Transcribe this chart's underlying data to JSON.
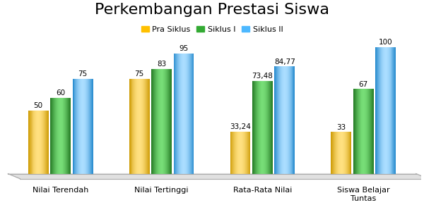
{
  "title": "Perkembangan Prestasi Siswa",
  "categories": [
    "Nilai Terendah",
    "Nilai Tertinggi",
    "Rata-Rata Nilai",
    "Siswa Belajar\nTuntas"
  ],
  "series": [
    {
      "label": "Pra Siklus",
      "values": [
        50,
        75,
        33.24,
        33
      ],
      "color": "#FFC000",
      "dark": "#CC9900",
      "light": "#FFE080"
    },
    {
      "label": "Siklus I",
      "values": [
        60,
        83,
        73.48,
        67
      ],
      "color": "#33AA33",
      "dark": "#227722",
      "light": "#77DD77"
    },
    {
      "label": "Siklus II",
      "values": [
        75,
        95,
        84.77,
        100
      ],
      "color": "#4DB8FF",
      "dark": "#2288CC",
      "light": "#AADDFF"
    }
  ],
  "bar_labels": [
    [
      "50",
      "60",
      "75"
    ],
    [
      "75",
      "83",
      "95"
    ],
    [
      "33,24",
      "73,48",
      "84,77"
    ],
    [
      "33",
      "67",
      "100"
    ]
  ],
  "ylim": [
    0,
    120
  ],
  "title_fontsize": 16,
  "label_fontsize": 7.5,
  "legend_fontsize": 8,
  "background_color": "#FFFFFF",
  "bar_width": 0.22,
  "platform_color": "#E0E0E0",
  "platform_edge": "#AAAAAA"
}
